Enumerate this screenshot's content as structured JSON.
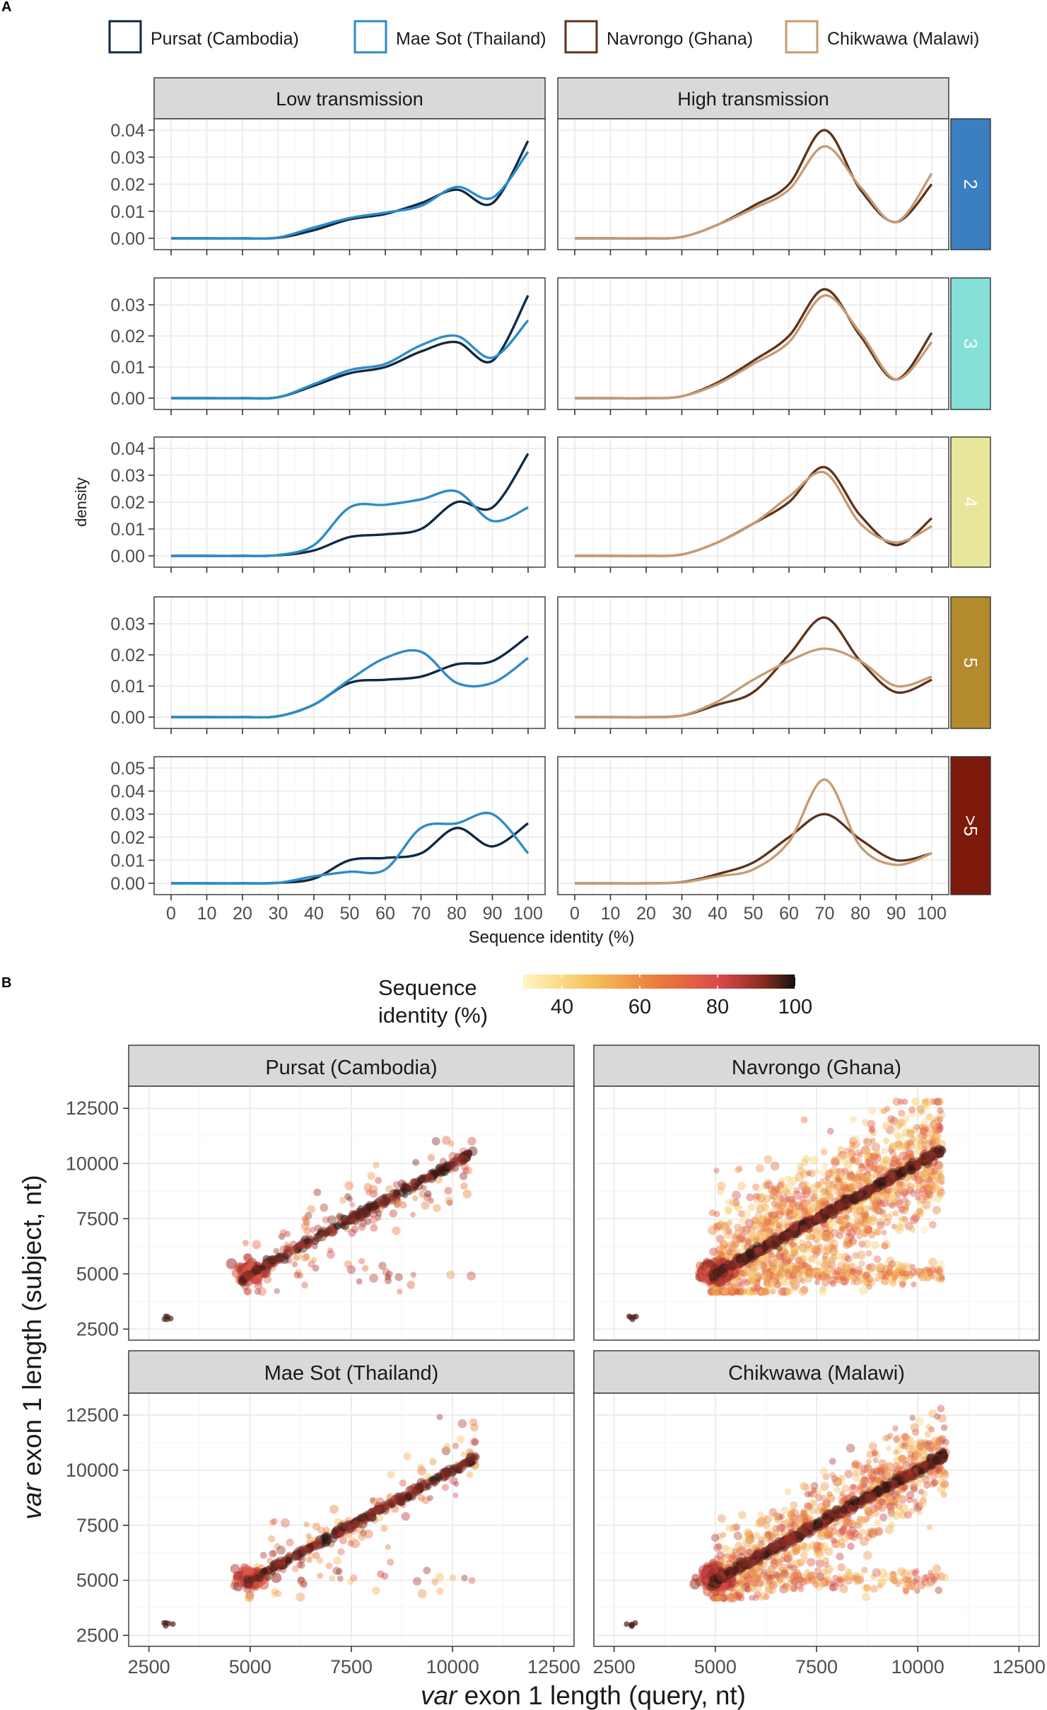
{
  "panel_labels": [
    "A",
    "B"
  ],
  "colors": {
    "pursat": "#0d2a44",
    "maesot": "#2e8bc9",
    "navrongo": "#5e341c",
    "chikwawa": "#c69c74",
    "strip_bg": "#d9d9d9",
    "grid_major": "#ebebeb",
    "grid_minor": "#f5f5f5",
    "strip2": "#3a7fc0",
    "strip3": "#86dfd6",
    "strip4": "#e8e69a",
    "strip5": "#b38a2c",
    "strip6": "#7e1a0c"
  },
  "chart_data": [
    {
      "type": "line",
      "title": "A",
      "legend": [
        "Pursat (Cambodia)",
        "Mae Sot (Thailand)",
        "Navrongo (Ghana)",
        "Chikwawa (Malawi)"
      ],
      "legend_position": "top",
      "columns": [
        "Low transmission",
        "High transmission"
      ],
      "rows": [
        "2",
        "3",
        "4",
        "5",
        ">5"
      ],
      "xlabel": "Sequence identity (%)",
      "ylabel": "density",
      "x": [
        0,
        10,
        20,
        30,
        40,
        50,
        60,
        70,
        80,
        90,
        100
      ],
      "xlim": [
        0,
        100
      ],
      "x_ticks": [
        "0",
        "10",
        "20",
        "30",
        "40",
        "50",
        "60",
        "70",
        "80",
        "90",
        "100"
      ],
      "facets": [
        {
          "row": "2",
          "ylim": [
            0,
            0.04
          ],
          "y_ticks": [
            "0.00",
            "0.01",
            "0.02",
            "0.03",
            "0.04"
          ],
          "series": [
            {
              "name": "Pursat (Cambodia)",
              "column": 0,
              "values": [
                0,
                0,
                0,
                0.0002,
                0.003,
                0.007,
                0.009,
                0.013,
                0.018,
                0.013,
                0.036
              ]
            },
            {
              "name": "Mae Sot (Thailand)",
              "column": 0,
              "values": [
                0,
                0,
                0,
                0.0003,
                0.004,
                0.0075,
                0.0095,
                0.012,
                0.019,
                0.015,
                0.032
              ]
            },
            {
              "name": "Navrongo (Ghana)",
              "column": 1,
              "values": [
                0,
                0,
                0,
                0.0005,
                0.005,
                0.012,
                0.02,
                0.04,
                0.018,
                0.006,
                0.02
              ]
            },
            {
              "name": "Chikwawa (Malawi)",
              "column": 1,
              "values": [
                0,
                0,
                0,
                0.0005,
                0.005,
                0.011,
                0.018,
                0.034,
                0.019,
                0.006,
                0.024
              ]
            }
          ]
        },
        {
          "row": "3",
          "ylim": [
            0,
            0.035
          ],
          "y_ticks": [
            "0.00",
            "0.01",
            "0.02",
            "0.03"
          ],
          "series": [
            {
              "name": "Pursat (Cambodia)",
              "column": 0,
              "values": [
                0,
                0,
                0,
                0.0003,
                0.004,
                0.008,
                0.01,
                0.015,
                0.018,
                0.012,
                0.033
              ]
            },
            {
              "name": "Mae Sot (Thailand)",
              "column": 0,
              "values": [
                0,
                0,
                0,
                0.0003,
                0.0045,
                0.009,
                0.011,
                0.017,
                0.02,
                0.013,
                0.025
              ]
            },
            {
              "name": "Navrongo (Ghana)",
              "column": 1,
              "values": [
                0,
                0,
                0,
                0.0006,
                0.005,
                0.012,
                0.02,
                0.035,
                0.02,
                0.006,
                0.021
              ]
            },
            {
              "name": "Chikwawa (Malawi)",
              "column": 1,
              "values": [
                0,
                0,
                0,
                0.0006,
                0.0045,
                0.011,
                0.018,
                0.033,
                0.021,
                0.006,
                0.018
              ]
            }
          ]
        },
        {
          "row": "4",
          "ylim": [
            0,
            0.04
          ],
          "y_ticks": [
            "0.00",
            "0.01",
            "0.02",
            "0.03",
            "0.04"
          ],
          "series": [
            {
              "name": "Pursat (Cambodia)",
              "column": 0,
              "values": [
                0,
                0,
                0,
                0.0002,
                0.002,
                0.007,
                0.008,
                0.01,
                0.02,
                0.018,
                0.038
              ]
            },
            {
              "name": "Mae Sot (Thailand)",
              "column": 0,
              "values": [
                0,
                0,
                0,
                0.0003,
                0.004,
                0.018,
                0.019,
                0.021,
                0.024,
                0.013,
                0.018
              ]
            },
            {
              "name": "Navrongo (Ghana)",
              "column": 1,
              "values": [
                0,
                0,
                0,
                0.0005,
                0.005,
                0.012,
                0.02,
                0.033,
                0.015,
                0.004,
                0.014
              ]
            },
            {
              "name": "Chikwawa (Malawi)",
              "column": 1,
              "values": [
                0,
                0,
                0,
                0.0005,
                0.005,
                0.012,
                0.022,
                0.031,
                0.012,
                0.005,
                0.011
              ]
            }
          ]
        },
        {
          "row": "5",
          "ylim": [
            0,
            0.035
          ],
          "y_ticks": [
            "0.00",
            "0.01",
            "0.02",
            "0.03"
          ],
          "series": [
            {
              "name": "Pursat (Cambodia)",
              "column": 0,
              "values": [
                0,
                0,
                0,
                0.0003,
                0.004,
                0.011,
                0.012,
                0.013,
                0.017,
                0.018,
                0.026
              ]
            },
            {
              "name": "Mae Sot (Thailand)",
              "column": 0,
              "values": [
                0,
                0,
                0,
                0.0003,
                0.004,
                0.012,
                0.019,
                0.021,
                0.011,
                0.011,
                0.019
              ]
            },
            {
              "name": "Navrongo (Ghana)",
              "column": 1,
              "values": [
                0,
                0,
                0,
                0.0005,
                0.004,
                0.008,
                0.02,
                0.032,
                0.018,
                0.008,
                0.012
              ]
            },
            {
              "name": "Chikwawa (Malawi)",
              "column": 1,
              "values": [
                0,
                0,
                0,
                0.0005,
                0.005,
                0.012,
                0.018,
                0.022,
                0.018,
                0.01,
                0.013
              ]
            }
          ]
        },
        {
          "row": ">5",
          "ylim": [
            0,
            0.05
          ],
          "y_ticks": [
            "0.00",
            "0.01",
            "0.02",
            "0.03",
            "0.04",
            "0.05"
          ],
          "series": [
            {
              "name": "Pursat (Cambodia)",
              "column": 0,
              "values": [
                0,
                0,
                0,
                0.0002,
                0.002,
                0.01,
                0.011,
                0.013,
                0.024,
                0.016,
                0.026
              ]
            },
            {
              "name": "Mae Sot (Thailand)",
              "column": 0,
              "values": [
                0,
                0,
                0,
                0.0002,
                0.003,
                0.005,
                0.006,
                0.024,
                0.026,
                0.03,
                0.013
              ]
            },
            {
              "name": "Navrongo (Ghana)",
              "column": 1,
              "values": [
                0,
                0,
                0,
                0.0005,
                0.004,
                0.009,
                0.02,
                0.03,
                0.019,
                0.01,
                0.013
              ]
            },
            {
              "name": "Chikwawa (Malawi)",
              "column": 1,
              "values": [
                0,
                0,
                0,
                0.0004,
                0.003,
                0.006,
                0.018,
                0.045,
                0.016,
                0.008,
                0.013
              ]
            }
          ]
        }
      ]
    },
    {
      "type": "scatter",
      "title": "B",
      "colorbar": {
        "title_line1": "Sequence",
        "title_line2": "identity (%)",
        "ticks": [
          "40",
          "60",
          "80",
          "100"
        ],
        "range": [
          30,
          100
        ]
      },
      "facets": [
        "Pursat (Cambodia)",
        "Navrongo (Ghana)",
        "Mae Sot (Thailand)",
        "Chikwawa (Malawi)"
      ],
      "xlabel_italic": "var",
      "xlabel_rest": " exon 1 length (query, nt)",
      "ylabel_italic": "var",
      "ylabel_rest": " exon 1 length (subject, nt)",
      "xlim": [
        2000,
        13000
      ],
      "ylim": [
        2000,
        13500
      ],
      "x_ticks": [
        "2500",
        "5000",
        "7500",
        "10000",
        "12500"
      ],
      "y_ticks": [
        "2500",
        "5000",
        "7500",
        "10000",
        "12500"
      ],
      "description_points": "dense diagonal (identity ~100%) from 5000 to 10500 plus off-diagonal cloud of lower identity"
    }
  ]
}
